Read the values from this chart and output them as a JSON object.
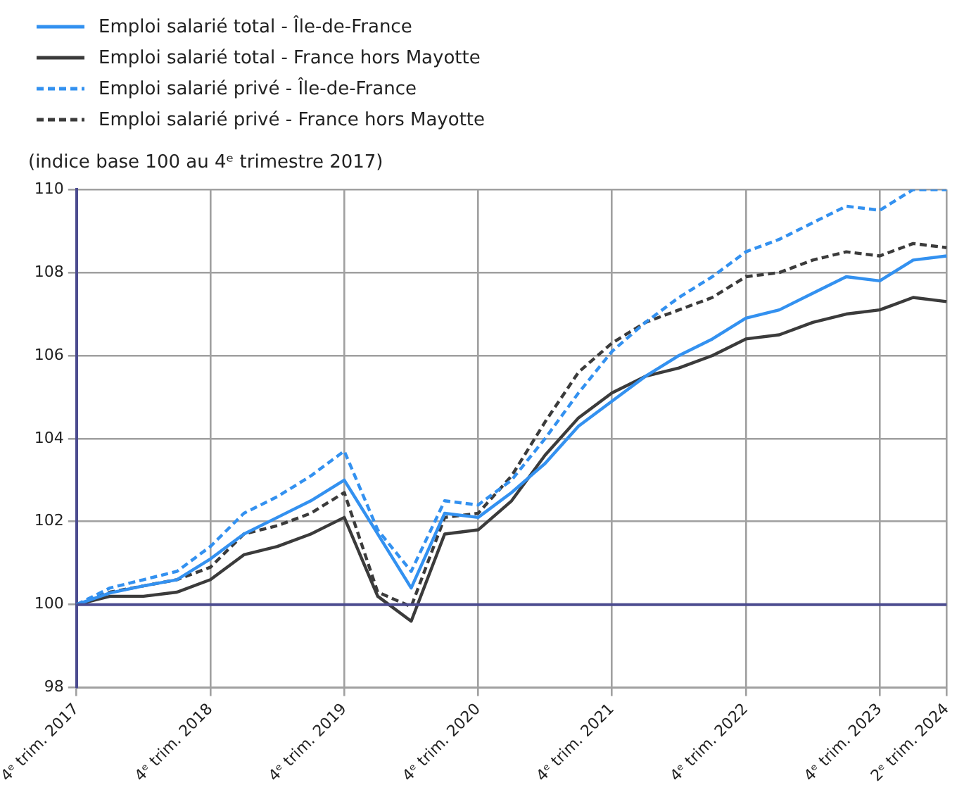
{
  "chart_data": {
    "type": "line",
    "subtitle": "(indice base 100 au 4ᵉ trimestre 2017)",
    "categories": [
      "4ᵉ trim. 2017",
      null,
      null,
      null,
      "4ᵉ trim. 2018",
      null,
      null,
      null,
      "4ᵉ trim. 2019",
      null,
      null,
      null,
      "4ᵉ trim. 2020",
      null,
      null,
      null,
      "4ᵉ trim. 2021",
      null,
      null,
      null,
      "4ᵉ trim. 2022",
      null,
      null,
      null,
      "4ᵉ trim. 2023",
      null,
      "2ᵉ trim. 2024"
    ],
    "series": [
      {
        "name": "Emploi salarié total - Île-de-France",
        "color": "#3391f0",
        "line_style": "solid",
        "values": [
          100,
          100.28,
          100.45,
          100.6,
          101.1,
          101.7,
          102.1,
          102.5,
          103.0,
          101.7,
          100.4,
          102.2,
          102.1,
          102.7,
          103.4,
          104.3,
          104.9,
          105.5,
          106.0,
          106.4,
          106.9,
          107.1,
          107.5,
          107.9,
          107.8,
          108.3,
          108.4
        ]
      },
      {
        "name": "Emploi salarié total - France hors Mayotte",
        "color": "#3b3b3b",
        "line_style": "solid",
        "values": [
          100,
          100.2,
          100.2,
          100.3,
          100.6,
          101.2,
          101.4,
          101.7,
          102.1,
          100.2,
          99.6,
          101.7,
          101.8,
          102.5,
          103.6,
          104.5,
          105.1,
          105.5,
          105.7,
          106.0,
          106.4,
          106.5,
          106.8,
          107.0,
          107.1,
          107.4,
          107.3
        ]
      },
      {
        "name": "Emploi salarié privé - Île-de-France",
        "color": "#3391f0",
        "line_style": "dashed",
        "values": [
          100,
          100.4,
          100.6,
          100.8,
          101.4,
          102.2,
          102.6,
          103.1,
          103.7,
          101.8,
          100.8,
          102.5,
          102.4,
          103.0,
          104.0,
          105.1,
          106.1,
          106.8,
          107.4,
          107.9,
          108.5,
          108.8,
          109.2,
          109.6,
          109.5,
          110.0,
          110.0
        ]
      },
      {
        "name": "Emploi salarié privé - France hors Mayotte",
        "color": "#3b3b3b",
        "line_style": "dashed",
        "values": [
          100,
          100.3,
          100.45,
          100.6,
          100.9,
          101.7,
          101.9,
          102.2,
          102.7,
          100.3,
          99.95,
          102.1,
          102.2,
          103.1,
          104.4,
          105.6,
          106.3,
          106.8,
          107.1,
          107.4,
          107.9,
          108.0,
          108.3,
          108.5,
          108.4,
          108.7,
          108.6
        ]
      }
    ],
    "ylim": [
      98,
      110
    ],
    "yticks": [
      98,
      100,
      102,
      104,
      106,
      108,
      110
    ],
    "grid": true,
    "legend": "top left",
    "marker": "none",
    "ref_lines": [
      {
        "axis": "y",
        "value": 100,
        "color": "#4b4b8f"
      }
    ]
  }
}
